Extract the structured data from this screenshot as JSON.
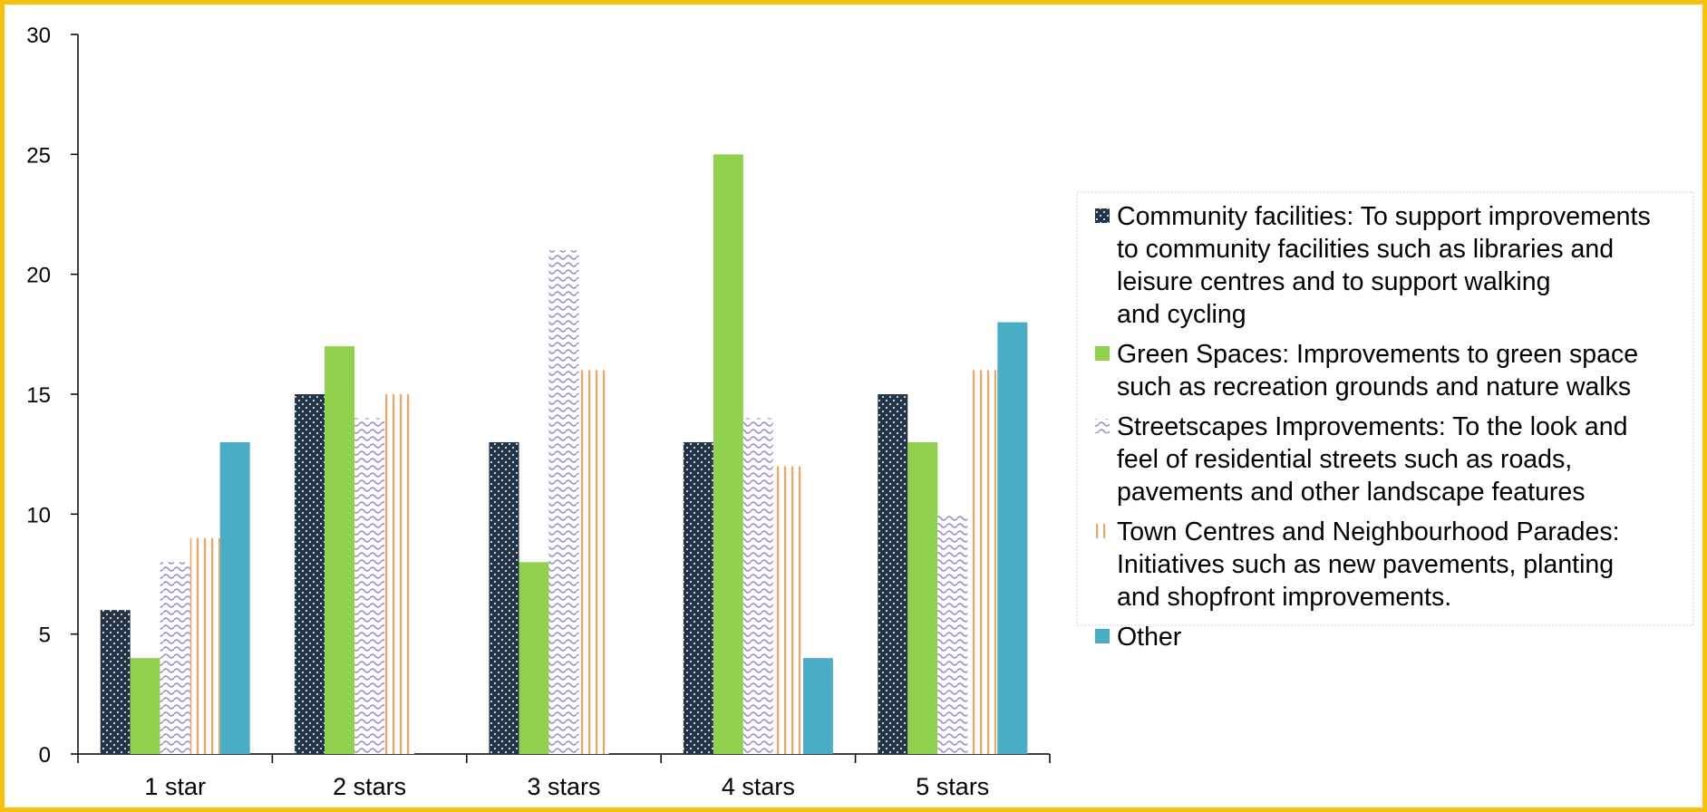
{
  "chart_data": {
    "type": "bar",
    "title": "",
    "xlabel": "",
    "ylabel": "",
    "ylim": [
      0,
      30
    ],
    "yticks": [
      0,
      5,
      10,
      15,
      20,
      25,
      30
    ],
    "categories": [
      "1 star",
      "2 stars",
      "3 stars",
      "4 stars",
      "5 stars"
    ],
    "legend_position": "right",
    "grid": false,
    "series": [
      {
        "name": "Community facilities: To support improvements to community facilities such as libraries and leisure centres and to support walking and cycling",
        "legend_lines": [
          "Community facilities: To support improvements",
          "to community facilities such as libraries and",
          "leisure centres and to support walking",
          "and cycling"
        ],
        "values": [
          6,
          15,
          13,
          13,
          15
        ],
        "color": "#243447",
        "pattern": "dots"
      },
      {
        "name": "Green Spaces:  Improvements to green space such as recreation grounds and nature walks",
        "legend_lines": [
          "Green Spaces:  Improvements to green space",
          "such as recreation grounds and nature walks"
        ],
        "values": [
          4,
          17,
          8,
          25,
          13
        ],
        "color": "#92D050",
        "pattern": "solid"
      },
      {
        "name": "Streetscapes Improvements: To the look and feel of residential streets such as roads, pavements and other landscape features",
        "legend_lines": [
          "Streetscapes Improvements: To the look and",
          "feel of residential streets such as roads,",
          "pavements and other landscape features"
        ],
        "values": [
          8,
          14,
          21,
          14,
          10
        ],
        "color": "#A89BD0",
        "pattern": "waves"
      },
      {
        "name": "Town Centres and Neighbourhood Parades: Initiatives such as new pavements, planting and shopfront improvements.",
        "legend_lines": [
          "Town Centres and Neighbourhood Parades:",
          "Initiatives such as new pavements, planting",
          "and shopfront improvements."
        ],
        "values": [
          9,
          15,
          16,
          12,
          16
        ],
        "color": "#F4A460",
        "pattern": "vlines"
      },
      {
        "name": "Other",
        "legend_lines": [
          "Other"
        ],
        "values": [
          13,
          0,
          0,
          4,
          18
        ],
        "color": "#4BACC6",
        "pattern": "solid"
      }
    ]
  }
}
